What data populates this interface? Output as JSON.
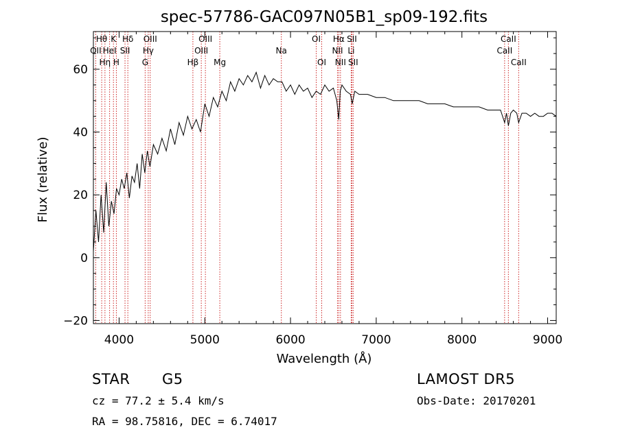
{
  "chart_data": {
    "type": "line",
    "title": "spec-57786-GAC097N05B1_sp09-192.fits",
    "xlabel": "Wavelength (Å)",
    "ylabel": "Flux (relative)",
    "xlim": [
      3700,
      9100
    ],
    "ylim": [
      -21,
      72
    ],
    "xticks": [
      4000,
      5000,
      6000,
      7000,
      8000,
      9000
    ],
    "yticks": [
      -20,
      0,
      20,
      40,
      60
    ],
    "grid": false,
    "line_color": "#000000",
    "marker_color": "#cc2222",
    "series": [
      {
        "x": [
          3700,
          3730,
          3760,
          3790,
          3820,
          3850,
          3880,
          3910,
          3940,
          3970,
          4000,
          4030,
          4060,
          4090,
          4120,
          4150,
          4180,
          4210,
          4240,
          4270,
          4300,
          4330,
          4360,
          4400,
          4450,
          4500,
          4550,
          4600,
          4650,
          4700,
          4750,
          4800,
          4850,
          4900,
          4950,
          5000,
          5050,
          5100,
          5150,
          5200,
          5250,
          5300,
          5350,
          5400,
          5450,
          5500,
          5550,
          5600,
          5650,
          5700,
          5750,
          5800,
          5850,
          5900,
          5950,
          6000,
          6050,
          6100,
          6150,
          6200,
          6250,
          6300,
          6350,
          6400,
          6450,
          6500,
          6540,
          6563,
          6580,
          6600,
          6650,
          6700,
          6720,
          6750,
          6800,
          6900,
          7000,
          7100,
          7200,
          7300,
          7400,
          7500,
          7600,
          7700,
          7800,
          7900,
          8000,
          8100,
          8200,
          8300,
          8400,
          8450,
          8498,
          8520,
          8542,
          8570,
          8600,
          8640,
          8662,
          8700,
          8750,
          8800,
          8850,
          8900,
          8950,
          9000,
          9050,
          9100
        ],
        "y": [
          2,
          15,
          5,
          20,
          8,
          24,
          10,
          18,
          14,
          22,
          20,
          25,
          22,
          27,
          19,
          26,
          24,
          30,
          22,
          33,
          27,
          34,
          29,
          36,
          33,
          38,
          34,
          41,
          36,
          43,
          39,
          45,
          41,
          44,
          40,
          49,
          45,
          51,
          48,
          53,
          50,
          56,
          53,
          57,
          55,
          58,
          56,
          59,
          54,
          58,
          55,
          57,
          56,
          56,
          53,
          55,
          52,
          55,
          53,
          54,
          51,
          53,
          52,
          55,
          53,
          54,
          50,
          44,
          53,
          55,
          53,
          52,
          49,
          53,
          52,
          52,
          51,
          51,
          50,
          50,
          50,
          50,
          49,
          49,
          49,
          48,
          48,
          48,
          48,
          47,
          47,
          47,
          43,
          46,
          42,
          46,
          47,
          46,
          43,
          46,
          46,
          45,
          46,
          45,
          45,
          46,
          46,
          45
        ]
      }
    ],
    "line_markers": [
      {
        "label": "OII",
        "x": 3727,
        "row": 1
      },
      {
        "label": "Hθ",
        "x": 3797,
        "row": 0
      },
      {
        "label": "Hη",
        "x": 3835,
        "row": 2
      },
      {
        "label": "HeI",
        "x": 3889,
        "row": 1
      },
      {
        "label": "K",
        "x": 3934,
        "row": 0
      },
      {
        "label": "H",
        "x": 3968,
        "row": 2
      },
      {
        "label": "SII",
        "x": 4069,
        "row": 1
      },
      {
        "label": "Hδ",
        "x": 4102,
        "row": 0
      },
      {
        "label": "G",
        "x": 4304,
        "row": 2
      },
      {
        "label": "Hγ",
        "x": 4340,
        "row": 1
      },
      {
        "label": "OIII",
        "x": 4363,
        "row": 0
      },
      {
        "label": "Hβ",
        "x": 4861,
        "row": 2
      },
      {
        "label": "OIII",
        "x": 4959,
        "row": 1
      },
      {
        "label": "OIII",
        "x": 5007,
        "row": 0
      },
      {
        "label": "Mg",
        "x": 5175,
        "row": 2
      },
      {
        "label": "Na",
        "x": 5893,
        "row": 1
      },
      {
        "label": "OI",
        "x": 6300,
        "row": 0
      },
      {
        "label": "OI",
        "x": 6364,
        "row": 2
      },
      {
        "label": "NII",
        "x": 6548,
        "row": 1
      },
      {
        "label": "Hα",
        "x": 6563,
        "row": 0
      },
      {
        "label": "NII",
        "x": 6583,
        "row": 2
      },
      {
        "label": "Li",
        "x": 6708,
        "row": 1
      },
      {
        "label": "SII",
        "x": 6716,
        "row": 0
      },
      {
        "label": "SII",
        "x": 6731,
        "row": 2
      },
      {
        "label": "CaII",
        "x": 8498,
        "row": 1
      },
      {
        "label": "CaII",
        "x": 8542,
        "row": 0
      },
      {
        "label": "CaII",
        "x": 8662,
        "row": 2
      }
    ]
  },
  "info": {
    "object_class": "STAR",
    "subclass": "G5",
    "survey": "LAMOST DR5",
    "redshift_line": "cz = 77.2 ± 5.4 km/s",
    "obs_date_line": "Obs-Date: 20170201",
    "coords_line": "RA =  98.75816, DEC =   6.74017"
  }
}
